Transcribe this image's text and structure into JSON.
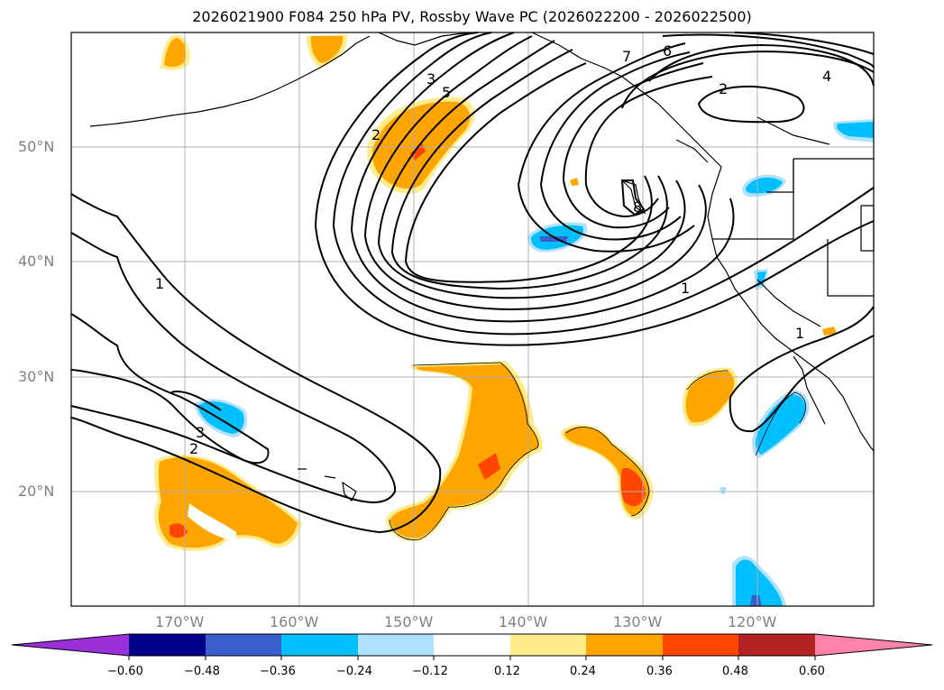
{
  "title": "2026021900 F084 250 hPa PV, Rossby Wave PC (2026022200 - 2026022500)",
  "lat_labels": [
    "50°N",
    "40°N",
    "30°N",
    "20°N"
  ],
  "lon_labels": [
    "170°W",
    "160°W",
    "150°W",
    "140°W",
    "130°W",
    "120°W"
  ],
  "contour_labels": [
    "7",
    "6",
    "4",
    "2",
    "3",
    "5",
    "2",
    "8",
    "1",
    "1",
    "1",
    "3",
    "2"
  ],
  "colorbar": {
    "ticks": [
      "−0.60",
      "−0.48",
      "−0.36",
      "−0.24",
      "−0.12",
      "0.12",
      "0.24",
      "0.36",
      "0.48",
      "0.60"
    ],
    "colors": [
      "#9b30d9",
      "#00008b",
      "#3a5fcd",
      "#00bfff",
      "#b0e2ff",
      "#ffffff",
      "#ffec8b",
      "#ffa500",
      "#ff4500",
      "#b22222",
      "#ff82ab"
    ]
  },
  "colors": {
    "positive_shade_1": "#ffec8b",
    "positive_shade_2": "#ffa500",
    "positive_shade_3": "#ff4500",
    "negative_shade_1": "#b0e2ff",
    "negative_shade_2": "#00bfff",
    "negative_shade_3": "#3a5fcd",
    "grid": "#b0b0b0",
    "contour": "#000000"
  }
}
